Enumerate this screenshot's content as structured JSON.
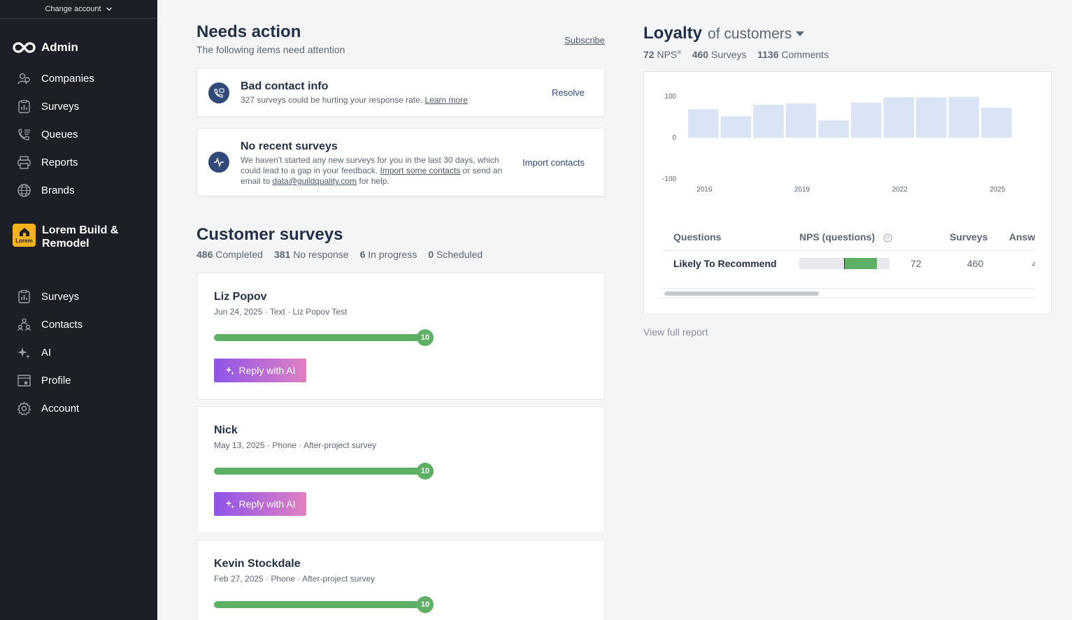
{
  "sidebar": {
    "change_account": "Change account",
    "admin_label": "Admin",
    "admin_items": [
      {
        "label": "Companies",
        "icon": "companies-icon"
      },
      {
        "label": "Surveys",
        "icon": "clipboard-icon"
      },
      {
        "label": "Queues",
        "icon": "queue-icon"
      },
      {
        "label": "Reports",
        "icon": "printer-icon"
      },
      {
        "label": "Brands",
        "icon": "globe-icon"
      }
    ],
    "company": {
      "name": "Lorem Build & Remodel",
      "logo_text": "Lorem"
    },
    "company_items": [
      {
        "label": "Surveys",
        "icon": "clipboard-icon"
      },
      {
        "label": "Contacts",
        "icon": "contacts-icon"
      },
      {
        "label": "AI",
        "icon": "sparkle-icon"
      },
      {
        "label": "Profile",
        "icon": "profile-icon"
      },
      {
        "label": "Account",
        "icon": "gear-icon"
      }
    ]
  },
  "needs_action": {
    "title": "Needs action",
    "subtitle": "The following items need attention",
    "subscribe": "Subscribe",
    "items": [
      {
        "title": "Bad contact info",
        "body_text": "327 surveys could be hurting your response rate.",
        "link": "Learn more",
        "action": "Resolve"
      },
      {
        "title": "No recent surveys",
        "body_1": "We haven't started any new surveys for you in the last 30 days, which could lead to a gap in your feedback.",
        "link_1": "Import some contacts",
        "body_2": "or send an email to",
        "link_2": "data@guildquality.com",
        "body_3": "for help.",
        "action": "Import contacts"
      }
    ]
  },
  "customer_surveys": {
    "title": "Customer surveys",
    "stats": [
      {
        "value": "486",
        "label": "Completed"
      },
      {
        "value": "381",
        "label": "No response"
      },
      {
        "value": "6",
        "label": "In progress"
      },
      {
        "value": "0",
        "label": "Scheduled"
      }
    ],
    "reply_label": "Reply with AI",
    "items": [
      {
        "name": "Liz Popov",
        "meta": "Jun 24, 2025 · Text · Liz Popov Test",
        "score": "10",
        "score_fraction": 1.0
      },
      {
        "name": "Nick",
        "meta": "May 13, 2025 · Phone · After-project survey",
        "score": "10",
        "score_fraction": 1.0
      },
      {
        "name": "Kevin Stockdale",
        "meta": "Feb 27, 2025 · Phone · After-project survey",
        "score": "10",
        "score_fraction": 1.0
      }
    ]
  },
  "loyalty": {
    "title": "Loyalty",
    "dropdown": "of customers",
    "nps_value": "72",
    "nps_label": "NPS",
    "nps_mark": "®",
    "surveys_value": "460",
    "surveys_label": "Surveys",
    "comments_value": "1136",
    "comments_label": "Comments",
    "view_full": "View full report",
    "table": {
      "headers": [
        "Questions",
        "NPS (questions)",
        "Surveys",
        "Answ"
      ],
      "row": {
        "question": "Likely To Recommend",
        "nps": "72",
        "surveys": "460",
        "answers": "4"
      },
      "nps_fraction": 0.72
    }
  },
  "chart_data": {
    "type": "bar",
    "x": [
      2015.5,
      2016.5,
      2017.5,
      2018.5,
      2019.5,
      2020.5,
      2021.5,
      2022.5,
      2023.5,
      2024.5,
      2025.5
    ],
    "values": [
      69,
      52,
      80,
      83,
      42,
      85,
      98,
      98,
      99,
      73,
      null
    ],
    "xticks": [
      2016,
      2019,
      2022,
      2025
    ],
    "yticks": [
      100,
      0,
      -100
    ],
    "ylim": [
      -100,
      100
    ],
    "bar_color": "#dae4f5"
  },
  "colors": {
    "sidebar_bg": "#1c1f26",
    "green": "#5db064",
    "navy": "#324a7a",
    "ai_gradient_start": "#8e55e8",
    "ai_gradient_end": "#e080c2"
  }
}
